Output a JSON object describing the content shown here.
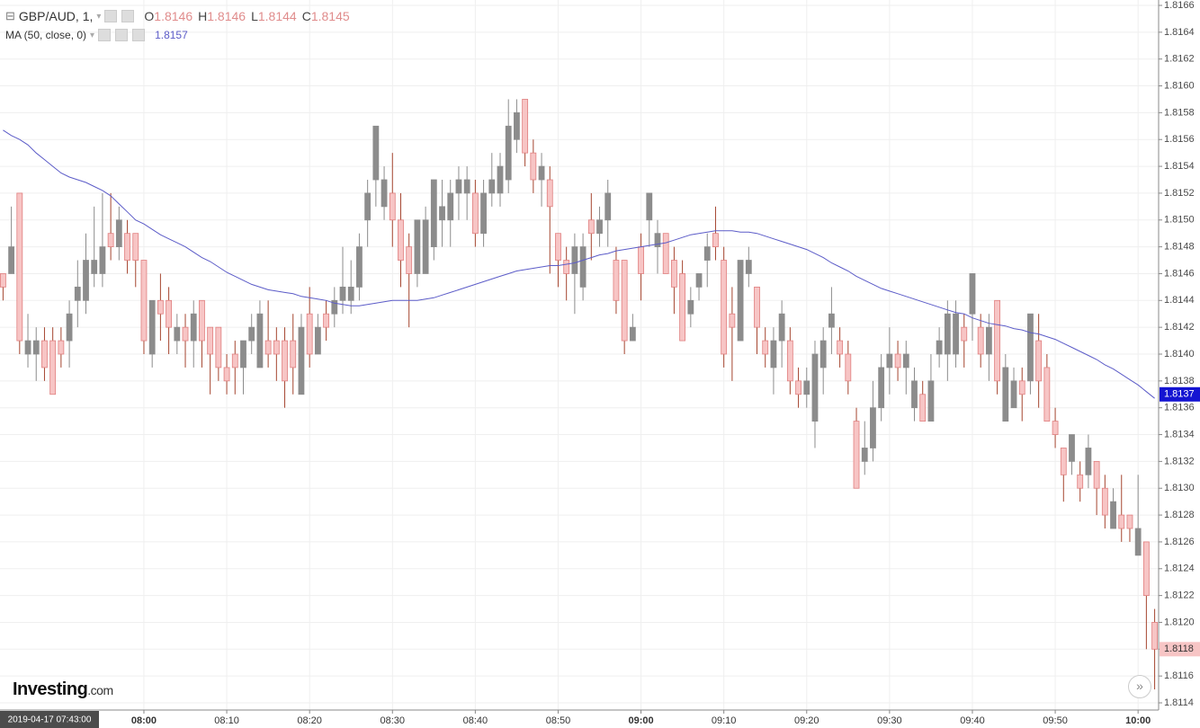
{
  "chart_data": {
    "type": "candlestick",
    "header": {
      "symbol": "GBP/AUD, 1,",
      "ohlc": [
        {
          "key": "O",
          "value": 1.8146
        },
        {
          "key": "H",
          "value": 1.8146
        },
        {
          "key": "L",
          "value": 1.8144
        },
        {
          "key": "C",
          "value": 1.8145
        }
      ]
    },
    "up_color": "#8c8c8c",
    "down_color": "#f7c5c5",
    "down_edge": "#e07f7f",
    "down_wick": "#a5452f",
    "ylim": [
      1.8114,
      1.8166
    ],
    "yticks": [
      1.8114,
      1.8116,
      1.8118,
      {
        "value": 1.812,
        "label": "1.8120"
      },
      1.8122,
      1.8124,
      1.8126,
      1.8128,
      {
        "value": 1.813,
        "label": "1.8130"
      },
      1.8132,
      1.8134,
      1.8136,
      1.8138,
      {
        "value": 1.814,
        "label": "1.8140"
      },
      1.8142,
      1.8144,
      1.8146,
      1.8148,
      {
        "value": 1.815,
        "label": "1.8150"
      },
      1.8152,
      1.8154,
      1.8156,
      1.8158,
      {
        "value": 1.816,
        "label": "1.8160"
      },
      1.8162,
      1.8164,
      1.8166
    ],
    "grid": true,
    "categories": [
      "2019-04-17 07:43:00",
      null,
      null,
      null,
      null,
      null,
      null,
      null,
      null,
      null,
      null,
      null,
      null,
      null,
      null,
      null,
      null,
      "08:00",
      null,
      null,
      null,
      null,
      null,
      null,
      null,
      null,
      null,
      "08:10",
      null,
      null,
      null,
      null,
      null,
      null,
      null,
      null,
      null,
      "08:20",
      null,
      null,
      null,
      null,
      null,
      null,
      null,
      null,
      null,
      "08:30",
      null,
      null,
      null,
      null,
      null,
      null,
      null,
      null,
      null,
      "08:40",
      null,
      null,
      null,
      null,
      null,
      null,
      null,
      null,
      null,
      "08:50",
      null,
      null,
      null,
      null,
      null,
      null,
      null,
      null,
      null,
      "09:00",
      null,
      null,
      null,
      null,
      null,
      null,
      null,
      null,
      null,
      "09:10",
      null,
      null,
      null,
      null,
      null,
      null,
      null,
      null,
      null,
      "09:20",
      null,
      null,
      null,
      null,
      null,
      null,
      null,
      null,
      null,
      "09:30",
      null,
      null,
      null,
      null,
      null,
      null,
      null,
      null,
      null,
      "09:40",
      null,
      null,
      null,
      null,
      null,
      null,
      null,
      null,
      null,
      "09:50",
      null,
      null,
      null,
      null,
      null,
      null,
      null,
      null,
      null,
      "10:00",
      null,
      null
    ],
    "open": [
      1.8146,
      1.8146,
      1.8152,
      1.814,
      1.814,
      1.8141,
      1.8141,
      1.8141,
      1.8141,
      1.8144,
      1.8144,
      1.8146,
      1.8146,
      1.8149,
      1.8148,
      1.8149,
      1.8149,
      1.8147,
      1.814,
      1.8144,
      1.8144,
      1.8141,
      1.8142,
      1.8141,
      1.8144,
      1.8142,
      1.8142,
      1.8139,
      1.814,
      1.8139,
      1.8141,
      1.8139,
      1.8141,
      1.8141,
      1.8141,
      1.8141,
      1.8137,
      1.8143,
      1.814,
      1.8143,
      1.8143,
      1.8144,
      1.8144,
      1.8145,
      1.815,
      1.8153,
      1.8151,
      1.8152,
      1.815,
      1.8148,
      1.8146,
      1.8146,
      1.8148,
      1.815,
      1.815,
      1.8152,
      1.8152,
      1.8152,
      1.8149,
      1.8152,
      1.8152,
      1.8153,
      1.8156,
      1.8159,
      1.8155,
      1.8153,
      1.8153,
      1.8149,
      1.8147,
      1.8146,
      1.8145,
      1.815,
      1.8149,
      1.815,
      1.8147,
      1.8147,
      1.8141,
      1.8148,
      1.815,
      1.8148,
      1.8149,
      1.8147,
      1.8146,
      1.8143,
      1.8145,
      1.8147,
      1.8149,
      1.8147,
      1.8143,
      1.8141,
      1.8146,
      1.8145,
      1.8141,
      1.8139,
      1.8141,
      1.8141,
      1.8138,
      1.8137,
      1.8135,
      1.8139,
      1.8142,
      1.8141,
      1.814,
      1.8135,
      1.8132,
      1.8133,
      1.8136,
      1.8139,
      1.814,
      1.8139,
      1.8136,
      1.8137,
      1.8135,
      1.814,
      1.814,
      1.814,
      1.8142,
      1.8143,
      1.8142,
      1.814,
      1.8144,
      1.8135,
      1.8136,
      1.8138,
      1.8138,
      1.8141,
      1.8139,
      1.8135,
      1.8133,
      1.8132,
      1.8131,
      1.8131,
      1.8132,
      1.813,
      1.8127,
      1.8128,
      1.8128,
      1.8125,
      1.8126,
      1.812
    ],
    "high": [
      1.8146,
      1.8151,
      1.8152,
      1.8143,
      1.8142,
      1.8142,
      1.8142,
      1.8142,
      1.8144,
      1.8147,
      1.8149,
      1.8151,
      1.8152,
      1.8152,
      1.8151,
      1.815,
      1.8149,
      1.8147,
      1.8144,
      1.8146,
      1.8145,
      1.8143,
      1.8143,
      1.8144,
      1.8144,
      1.8142,
      1.8142,
      1.814,
      1.8141,
      1.8141,
      1.8143,
      1.8144,
      1.8144,
      1.8142,
      1.8142,
      1.8143,
      1.8143,
      1.8145,
      1.8143,
      1.8144,
      1.8145,
      1.8148,
      1.8147,
      1.8149,
      1.8153,
      1.8157,
      1.8154,
      1.8155,
      1.8152,
      1.8149,
      1.815,
      1.8151,
      1.8153,
      1.8153,
      1.8153,
      1.8154,
      1.8154,
      1.8153,
      1.8153,
      1.8155,
      1.8155,
      1.8159,
      1.8159,
      1.8159,
      1.8156,
      1.8155,
      1.8154,
      1.8149,
      1.8148,
      1.8149,
      1.8149,
      1.8152,
      1.8151,
      1.8153,
      1.8148,
      1.8147,
      1.8143,
      1.8149,
      1.8152,
      1.815,
      1.8149,
      1.8148,
      1.8147,
      1.8145,
      1.8146,
      1.8149,
      1.8151,
      1.8148,
      1.8145,
      1.8147,
      1.8148,
      1.8145,
      1.8142,
      1.8142,
      1.8144,
      1.8142,
      1.8139,
      1.8139,
      1.8141,
      1.8142,
      1.8145,
      1.8142,
      1.8141,
      1.8136,
      1.8135,
      1.8138,
      1.814,
      1.8142,
      1.8141,
      1.8141,
      1.8139,
      1.8138,
      1.814,
      1.8142,
      1.8144,
      1.8144,
      1.8143,
      1.8146,
      1.8143,
      1.8143,
      1.8144,
      1.814,
      1.8139,
      1.8139,
      1.8143,
      1.8143,
      1.814,
      1.8136,
      1.8133,
      1.8134,
      1.8132,
      1.8134,
      1.8132,
      1.8131,
      1.813,
      1.8131,
      1.8128,
      1.8131,
      1.8126,
      1.8121
    ],
    "low": [
      1.8144,
      1.8146,
      1.814,
      1.8139,
      1.8138,
      1.8138,
      1.8137,
      1.8139,
      1.8139,
      1.8142,
      1.8143,
      1.8145,
      1.8145,
      1.8147,
      1.8147,
      1.8146,
      1.8145,
      1.814,
      1.8139,
      1.8141,
      1.814,
      1.814,
      1.8139,
      1.8139,
      1.8139,
      1.8137,
      1.8138,
      1.8137,
      1.8137,
      1.8137,
      1.814,
      1.8139,
      1.8139,
      1.8138,
      1.8136,
      1.8137,
      1.8137,
      1.8139,
      1.814,
      1.8141,
      1.8142,
      1.8143,
      1.8143,
      1.8144,
      1.8148,
      1.8151,
      1.815,
      1.8148,
      1.8145,
      1.8142,
      1.8145,
      1.8146,
      1.8147,
      1.8148,
      1.8148,
      1.815,
      1.815,
      1.8148,
      1.8148,
      1.8151,
      1.8151,
      1.8152,
      1.8155,
      1.8154,
      1.8152,
      1.8151,
      1.8146,
      1.8145,
      1.8144,
      1.8143,
      1.8144,
      1.8147,
      1.8148,
      1.8148,
      1.8143,
      1.814,
      1.8141,
      1.8144,
      1.8148,
      1.8146,
      1.8146,
      1.8143,
      1.8141,
      1.8142,
      1.8144,
      1.8145,
      1.8147,
      1.8139,
      1.8138,
      1.8141,
      1.8145,
      1.814,
      1.8139,
      1.8137,
      1.8139,
      1.8137,
      1.8136,
      1.8136,
      1.8133,
      1.8137,
      1.814,
      1.8139,
      1.8137,
      1.813,
      1.8131,
      1.8132,
      1.8135,
      1.8137,
      1.8138,
      1.8137,
      1.8135,
      1.8135,
      1.8135,
      1.8139,
      1.8138,
      1.8139,
      1.8139,
      1.8141,
      1.8139,
      1.8138,
      1.8137,
      1.8135,
      1.8136,
      1.8135,
      1.8137,
      1.8136,
      1.8135,
      1.8133,
      1.8129,
      1.8131,
      1.8129,
      1.813,
      1.8128,
      1.8127,
      1.8127,
      1.8126,
      1.8126,
      1.8125,
      1.8118,
      1.8115
    ],
    "close": [
      1.8145,
      1.8148,
      1.8141,
      1.8141,
      1.8141,
      1.8139,
      1.8137,
      1.814,
      1.8143,
      1.8145,
      1.8147,
      1.8147,
      1.8148,
      1.8148,
      1.815,
      1.8147,
      1.8147,
      1.8141,
      1.8144,
      1.8143,
      1.8142,
      1.8142,
      1.8141,
      1.8143,
      1.8141,
      1.814,
      1.8139,
      1.8138,
      1.8139,
      1.8141,
      1.8142,
      1.8143,
      1.814,
      1.814,
      1.8138,
      1.8139,
      1.8142,
      1.814,
      1.8142,
      1.8142,
      1.8144,
      1.8145,
      1.8145,
      1.8148,
      1.8152,
      1.8157,
      1.8153,
      1.815,
      1.8147,
      1.8146,
      1.815,
      1.815,
      1.8153,
      1.8151,
      1.8152,
      1.8153,
      1.8153,
      1.8149,
      1.8152,
      1.8153,
      1.8154,
      1.8157,
      1.8158,
      1.8155,
      1.8153,
      1.8154,
      1.8151,
      1.8147,
      1.8146,
      1.8148,
      1.8148,
      1.8149,
      1.815,
      1.8152,
      1.8144,
      1.8141,
      1.8142,
      1.8146,
      1.8152,
      1.8149,
      1.8146,
      1.8145,
      1.8141,
      1.8144,
      1.8146,
      1.8148,
      1.8148,
      1.814,
      1.8142,
      1.8147,
      1.8147,
      1.8142,
      1.814,
      1.8141,
      1.8143,
      1.8138,
      1.8137,
      1.8138,
      1.814,
      1.8141,
      1.8143,
      1.814,
      1.8138,
      1.813,
      1.8133,
      1.8136,
      1.8139,
      1.814,
      1.8139,
      1.814,
      1.8138,
      1.8135,
      1.8138,
      1.8141,
      1.8143,
      1.8143,
      1.8141,
      1.8146,
      1.814,
      1.8142,
      1.8138,
      1.8139,
      1.8138,
      1.8137,
      1.8143,
      1.8138,
      1.8135,
      1.8134,
      1.8131,
      1.8134,
      1.813,
      1.8133,
      1.813,
      1.8128,
      1.8129,
      1.8127,
      1.8127,
      1.8127,
      1.8122,
      1.8118
    ],
    "ma": {
      "name": "MA (50, close, 0)",
      "current": 1.8157,
      "color": "#5c5cc8",
      "values": [
        1.81567,
        1.81563,
        1.8156,
        1.81556,
        1.8155,
        1.81545,
        1.8154,
        1.81535,
        1.81532,
        1.8153,
        1.81528,
        1.81525,
        1.81522,
        1.81518,
        1.81512,
        1.81506,
        1.815,
        1.81497,
        1.81493,
        1.81489,
        1.81486,
        1.81483,
        1.8148,
        1.81476,
        1.81472,
        1.81469,
        1.81465,
        1.81461,
        1.81458,
        1.81455,
        1.81452,
        1.8145,
        1.81448,
        1.81447,
        1.81446,
        1.81445,
        1.81443,
        1.81442,
        1.81441,
        1.8144,
        1.81438,
        1.81437,
        1.81436,
        1.81436,
        1.81437,
        1.81438,
        1.81439,
        1.8144,
        1.8144,
        1.8144,
        1.8144,
        1.81441,
        1.81442,
        1.81444,
        1.81446,
        1.81448,
        1.8145,
        1.81452,
        1.81454,
        1.81456,
        1.81458,
        1.8146,
        1.81462,
        1.81463,
        1.81464,
        1.81465,
        1.81466,
        1.81466,
        1.81467,
        1.81468,
        1.8147,
        1.81472,
        1.81474,
        1.81475,
        1.81477,
        1.81478,
        1.81479,
        1.8148,
        1.81481,
        1.81482,
        1.81483,
        1.81485,
        1.81487,
        1.81489,
        1.8149,
        1.81491,
        1.81492,
        1.81492,
        1.81492,
        1.81491,
        1.81491,
        1.8149,
        1.81488,
        1.81486,
        1.81484,
        1.81482,
        1.8148,
        1.81478,
        1.81475,
        1.81472,
        1.81468,
        1.81465,
        1.81462,
        1.81458,
        1.81455,
        1.81452,
        1.81449,
        1.81447,
        1.81445,
        1.81443,
        1.81441,
        1.81439,
        1.81437,
        1.81435,
        1.81433,
        1.81431,
        1.8143,
        1.81427,
        1.81425,
        1.81423,
        1.81422,
        1.81421,
        1.81419,
        1.81418,
        1.81416,
        1.81415,
        1.81413,
        1.81411,
        1.81408,
        1.81405,
        1.81402,
        1.81399,
        1.81396,
        1.81392,
        1.81389,
        1.81385,
        1.81381,
        1.81377,
        1.81372,
        1.81367
      ]
    },
    "price_markers": [
      {
        "value": 1.8137,
        "color": "#1414d2"
      },
      {
        "value": 1.8118,
        "color": "#f7c5c5"
      }
    ],
    "logo": {
      "brand": "Investing",
      "suffix": ".com"
    }
  }
}
